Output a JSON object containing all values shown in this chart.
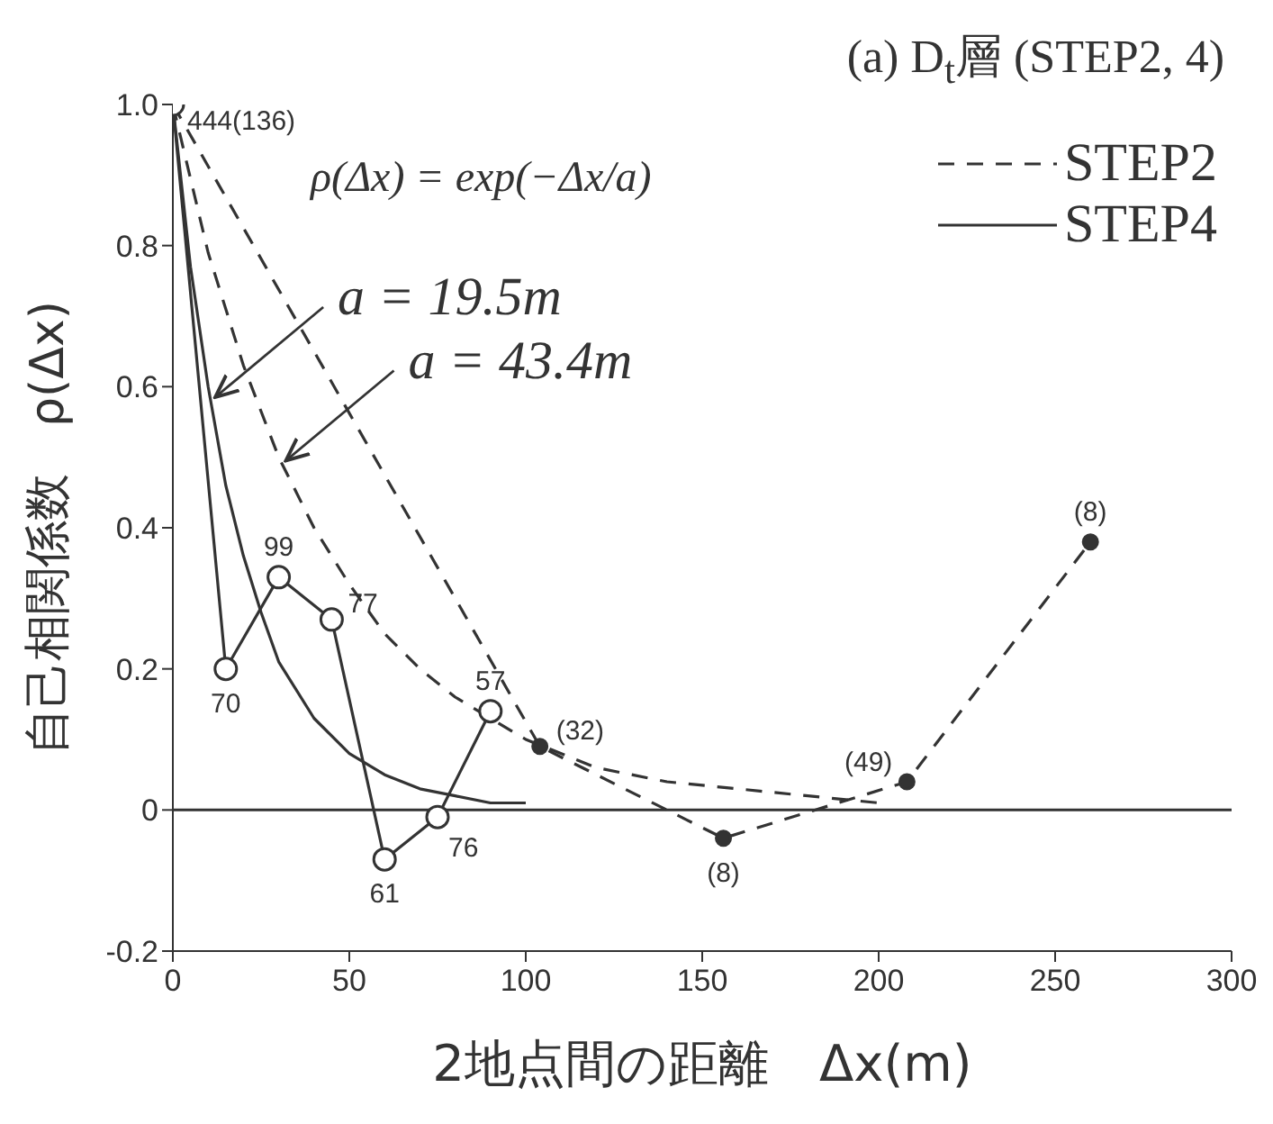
{
  "chart_data": {
    "type": "line",
    "title": "(a)    D$_{t}$層 (STEP2, 4)",
    "xlabel": "2地点間の距離　Δx(m)",
    "ylabel": "自己相関係数　ρ(Δx)",
    "xlim": [
      0,
      300
    ],
    "xticks": [
      0,
      50,
      100,
      150,
      200,
      250,
      300
    ],
    "ylim": [
      -0.2,
      1.0
    ],
    "yticks": [
      -0.2,
      0,
      0.2,
      0.4,
      0.6,
      0.8,
      {
        "value": 1.0,
        "label": "1.0"
      }
    ],
    "grid": false,
    "legend": "top right",
    "ref_lines": [
      {
        "axis": "y",
        "value": 0,
        "color": "#333333",
        "line_style": "solid"
      }
    ],
    "annotations": [
      "ρ(Δx) = exp(−Δx/a)",
      {
        "text": "a = 19.5m",
        "x": 11,
        "y": 0.58
      },
      {
        "text": "a = 43.4m",
        "x": 31,
        "y": 0.49
      },
      {
        "text": "444(136)",
        "x": 0,
        "y": 1.0
      },
      {
        "text": "70",
        "x": 15,
        "y": 0.2
      },
      {
        "text": "99",
        "x": 30,
        "y": 0.33
      },
      {
        "text": "77",
        "x": 45,
        "y": 0.27
      },
      {
        "text": "61",
        "x": 60,
        "y": -0.07
      },
      {
        "text": "76",
        "x": 75,
        "y": -0.01
      },
      {
        "text": "57",
        "x": 90,
        "y": 0.14
      },
      {
        "text": "(32)",
        "x": 104,
        "y": 0.09
      },
      {
        "text": "(8)",
        "x": 156,
        "y": -0.04
      },
      {
        "text": "(49)",
        "x": 208,
        "y": 0.04
      },
      {
        "text": "(8)",
        "x": 260,
        "y": 0.38
      }
    ],
    "series": [
      {
        "name": "STEP2",
        "type": "line",
        "color": "#333333",
        "line_style": "dashed",
        "marker": "circle",
        "x": [
          0,
          104,
          156,
          208,
          260
        ],
        "values": [
          1.0,
          0.09,
          -0.04,
          0.04,
          0.38
        ]
      },
      {
        "name": "STEP4",
        "type": "line",
        "color": "#333333",
        "line_style": "solid",
        "marker": "circle",
        "x": [
          0,
          15,
          30,
          45,
          60,
          75,
          90
        ],
        "values": [
          1.0,
          0.2,
          0.33,
          0.27,
          -0.07,
          -0.01,
          0.14
        ]
      },
      {
        "type": "line",
        "color": "#333333",
        "line_style": "dashed",
        "marker": "none",
        "x": [
          0,
          10,
          20,
          30,
          40,
          50,
          60,
          70,
          80,
          90,
          100,
          120,
          140,
          160,
          180,
          200
        ],
        "values": [
          1.0,
          0.79,
          0.63,
          0.5,
          0.4,
          0.32,
          0.25,
          0.2,
          0.16,
          0.13,
          0.1,
          0.06,
          0.04,
          0.03,
          0.02,
          0.01
        ]
      },
      {
        "type": "line",
        "color": "#333333",
        "line_style": "solid",
        "marker": "none",
        "x": [
          0,
          5,
          10,
          15,
          20,
          25,
          30,
          40,
          50,
          60,
          70,
          80,
          90,
          100
        ],
        "values": [
          1.0,
          0.77,
          0.6,
          0.46,
          0.36,
          0.28,
          0.21,
          0.13,
          0.08,
          0.05,
          0.03,
          0.02,
          0.01,
          0.01
        ]
      }
    ]
  }
}
